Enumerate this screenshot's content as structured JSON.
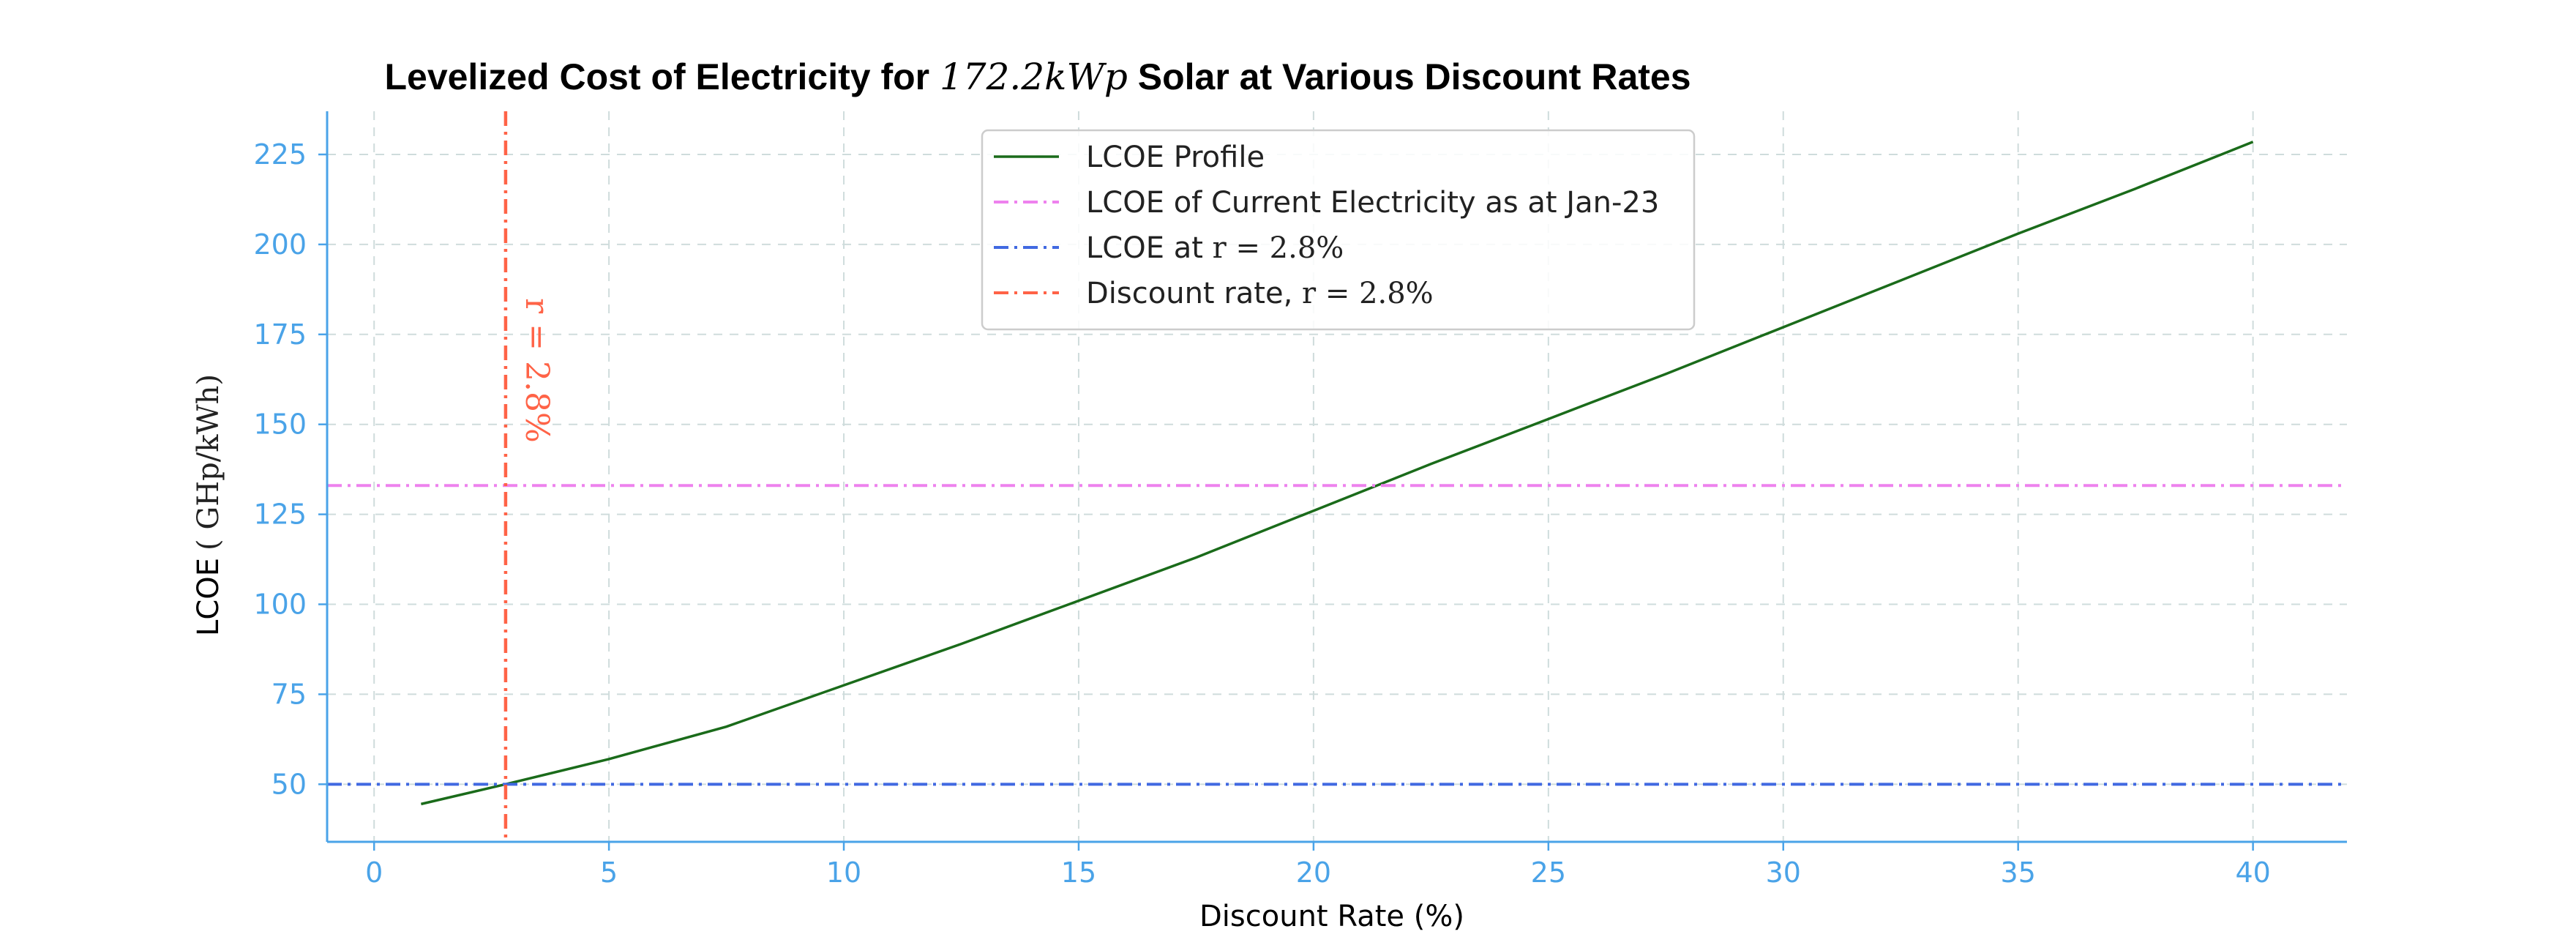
{
  "chart_data": {
    "type": "line",
    "title": {
      "prefix": "Levelized Cost of Electricity for ",
      "math": "172.2kWp",
      "suffix": " Solar at Various Discount Rates"
    },
    "xlabel": "Discount Rate (%)",
    "ylabel": {
      "text": "LCOE",
      "unit": "( GHp/kWh)"
    },
    "xlim": [
      -1,
      42
    ],
    "ylim": [
      34,
      237
    ],
    "xticks": [
      0,
      5,
      10,
      15,
      20,
      25,
      30,
      35,
      40
    ],
    "yticks": [
      50,
      75,
      100,
      125,
      150,
      175,
      200,
      225
    ],
    "grid": true,
    "legend_position": "top-center",
    "axis_color": "#4aa3e8",
    "series": [
      {
        "name": "LCOE Profile",
        "kind": "line",
        "color": "#1a6b1a",
        "x": [
          1,
          2.8,
          5,
          7.5,
          10,
          12.5,
          15,
          17.5,
          20,
          22.5,
          25,
          27.5,
          30,
          32.5,
          35,
          37.5,
          40
        ],
        "y": [
          44.5,
          50,
          57,
          66,
          77.5,
          89,
          101,
          113,
          126,
          139,
          151.5,
          164,
          177,
          190,
          203,
          215.5,
          228.5
        ]
      },
      {
        "name": "LCOE of Current Electricity as at Jan-23",
        "kind": "hline",
        "y": 133,
        "color": "#ee82ee"
      },
      {
        "name": "LCOE at ",
        "name_math": "r = 2.8%",
        "kind": "hline",
        "y": 50,
        "color": "#4169e1"
      },
      {
        "name": "Discount rate, ",
        "name_math": "r = 2.8%",
        "kind": "vline",
        "x": 2.8,
        "color": "#ff6347"
      }
    ],
    "annotations": [
      {
        "text": "r = 2.8%",
        "x": 2.8,
        "y": 165,
        "color": "#ff6347"
      }
    ]
  }
}
